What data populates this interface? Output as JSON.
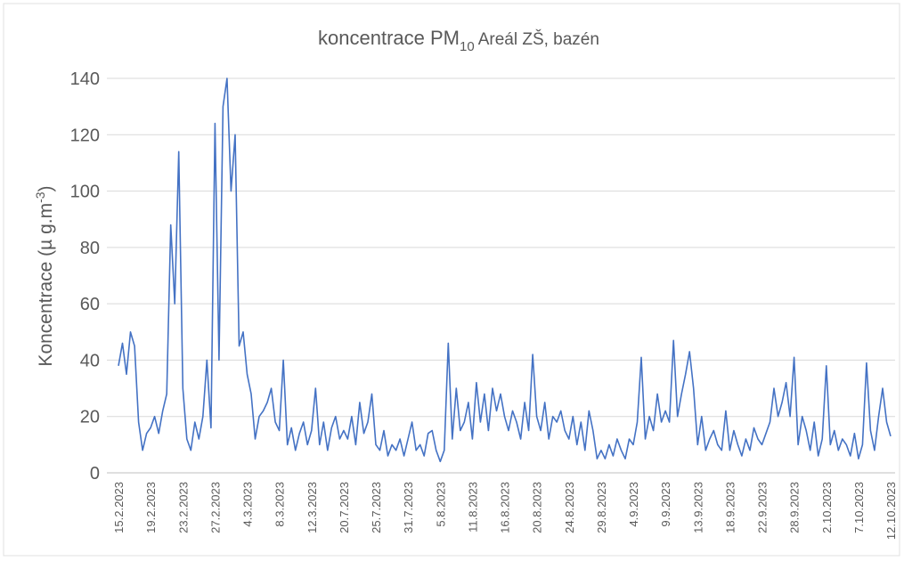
{
  "chart_data": {
    "type": "line",
    "title": "koncentrace PM",
    "title_subscript": "10",
    "title_suffix": "Areál ZŠ, bazén",
    "ylabel": "Koncentrace (µ g.m",
    "ylabel_superscript": "-3",
    "ylabel_end": ")",
    "categories": [
      "15.2.2023",
      null,
      null,
      null,
      null,
      null,
      null,
      null,
      "19.2.2023",
      null,
      null,
      null,
      null,
      null,
      null,
      null,
      "23.2.2023",
      null,
      null,
      null,
      null,
      null,
      null,
      null,
      "27.2.2023",
      null,
      null,
      null,
      null,
      null,
      null,
      null,
      "4.3.2023",
      null,
      null,
      null,
      null,
      null,
      null,
      null,
      "8.3.2023",
      null,
      null,
      null,
      null,
      null,
      null,
      null,
      "12.3.2023",
      null,
      null,
      null,
      null,
      null,
      null,
      null,
      "20.7.2023",
      null,
      null,
      null,
      null,
      null,
      null,
      null,
      "25.7.2023",
      null,
      null,
      null,
      null,
      null,
      null,
      null,
      "31.7.2023",
      null,
      null,
      null,
      null,
      null,
      null,
      null,
      "5.8.2023",
      null,
      null,
      null,
      null,
      null,
      null,
      null,
      "11.8.2023",
      null,
      null,
      null,
      null,
      null,
      null,
      null,
      "16.8.2023",
      null,
      null,
      null,
      null,
      null,
      null,
      null,
      "20.8.2023",
      null,
      null,
      null,
      null,
      null,
      null,
      null,
      "24.8.2023",
      null,
      null,
      null,
      null,
      null,
      null,
      null,
      "29.8.2023",
      null,
      null,
      null,
      null,
      null,
      null,
      null,
      "4.9.2023",
      null,
      null,
      null,
      null,
      null,
      null,
      null,
      "9.9.2023",
      null,
      null,
      null,
      null,
      null,
      null,
      null,
      "13.9.2023",
      null,
      null,
      null,
      null,
      null,
      null,
      null,
      "18.9.2023",
      null,
      null,
      null,
      null,
      null,
      null,
      null,
      "22.9.2023",
      null,
      null,
      null,
      null,
      null,
      null,
      null,
      "28.9.2023",
      null,
      null,
      null,
      null,
      null,
      null,
      null,
      "2.10.2023",
      null,
      null,
      null,
      null,
      null,
      null,
      null,
      "7.10.2023",
      null,
      null,
      null,
      null,
      null,
      null,
      null,
      "12.10.2023"
    ],
    "values": [
      38,
      46,
      35,
      50,
      45,
      18,
      8,
      14,
      16,
      20,
      14,
      22,
      28,
      88,
      60,
      114,
      30,
      12,
      8,
      18,
      12,
      20,
      40,
      16,
      124,
      40,
      130,
      140,
      100,
      120,
      45,
      50,
      35,
      28,
      12,
      20,
      22,
      25,
      30,
      18,
      15,
      40,
      10,
      16,
      8,
      14,
      18,
      10,
      15,
      30,
      10,
      18,
      8,
      16,
      20,
      12,
      15,
      12,
      20,
      10,
      25,
      14,
      18,
      28,
      10,
      8,
      15,
      6,
      10,
      8,
      12,
      6,
      12,
      18,
      8,
      10,
      6,
      14,
      15,
      8,
      4,
      8,
      46,
      12,
      30,
      15,
      18,
      25,
      12,
      32,
      18,
      28,
      15,
      30,
      22,
      28,
      20,
      15,
      22,
      18,
      12,
      25,
      15,
      42,
      20,
      15,
      25,
      12,
      20,
      18,
      22,
      15,
      12,
      20,
      10,
      18,
      8,
      22,
      15,
      5,
      8,
      5,
      10,
      6,
      12,
      8,
      5,
      12,
      10,
      18,
      41,
      12,
      20,
      15,
      28,
      18,
      22,
      18,
      47,
      20,
      28,
      35,
      43,
      30,
      10,
      20,
      8,
      12,
      15,
      10,
      8,
      22,
      8,
      15,
      10,
      6,
      12,
      8,
      16,
      12,
      10,
      14,
      18,
      30,
      20,
      25,
      32,
      20,
      41,
      10,
      20,
      15,
      8,
      18,
      6,
      12,
      38,
      10,
      15,
      8,
      12,
      10,
      6,
      14,
      5,
      10,
      39,
      15,
      8,
      20,
      30,
      18,
      13
    ],
    "color": "#4472c4",
    "ylim": [
      0,
      140
    ],
    "yticks": [
      0,
      20,
      40,
      60,
      80,
      100,
      120,
      140
    ],
    "grid": true
  }
}
